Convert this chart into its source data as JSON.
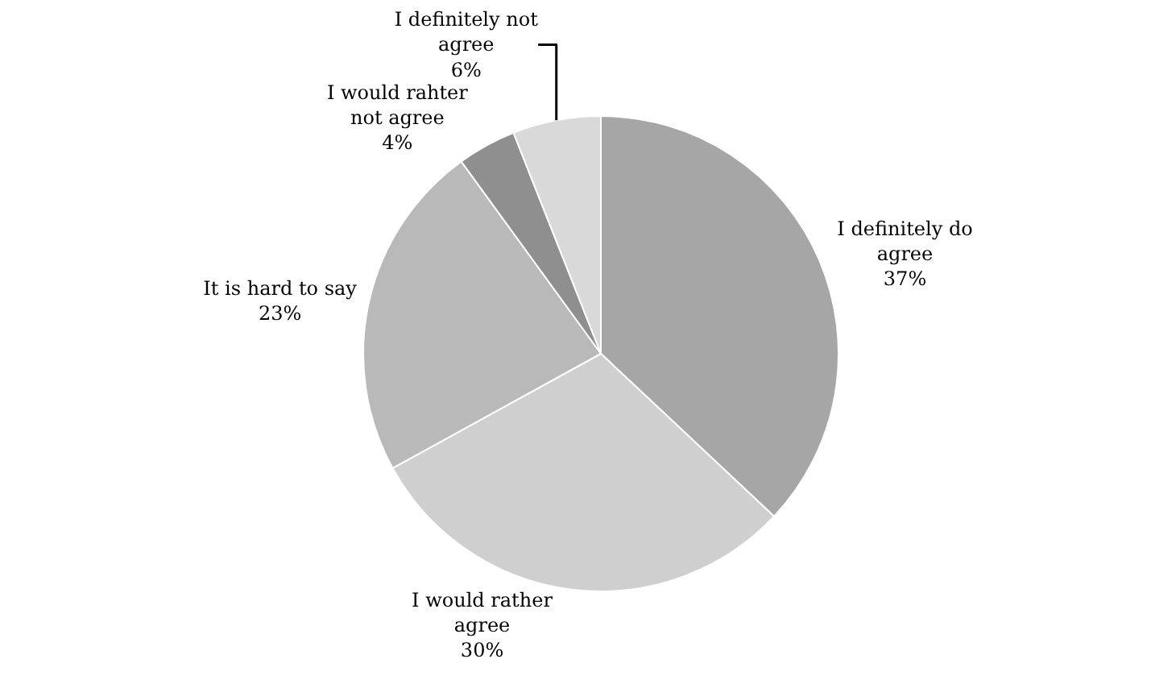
{
  "chart_data": {
    "type": "pie",
    "categories": [
      "I definitely do agree",
      "I would rather agree",
      "It is hard to say",
      "I would rahter not agree",
      "I definitely not agree"
    ],
    "values": [
      37,
      30,
      23,
      4,
      6
    ],
    "value_labels": [
      "37%",
      "30%",
      "23%",
      "4%",
      "6%"
    ],
    "colors": [
      "#a6a6a6",
      "#cfcfcf",
      "#b9b9b9",
      "#8f8f8f",
      "#d9d9d9"
    ]
  }
}
